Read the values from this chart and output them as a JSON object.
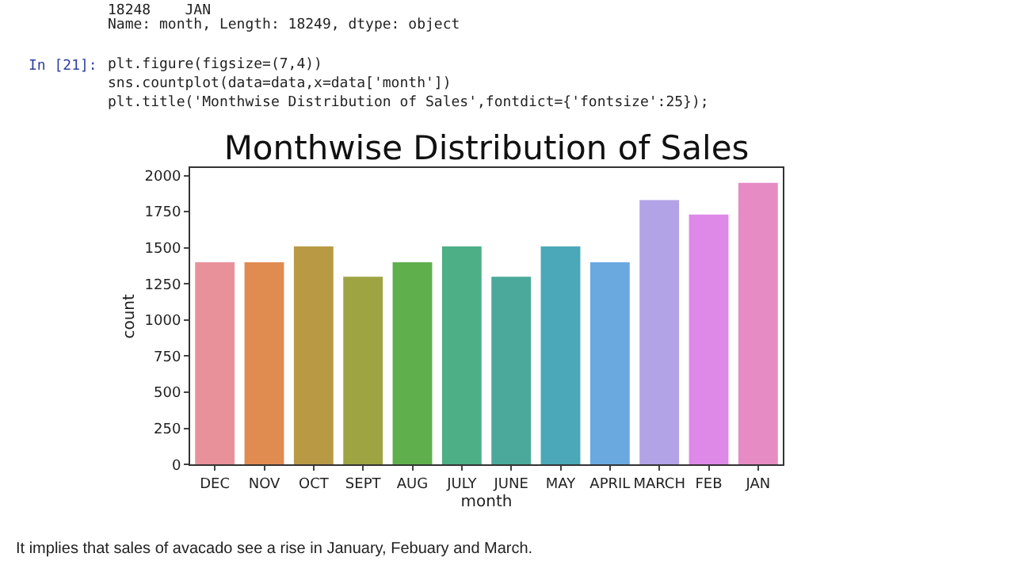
{
  "chart_data": {
    "type": "bar",
    "title": "Monthwise Distribution of Sales",
    "xlabel": "month",
    "ylabel": "count",
    "categories": [
      "DEC",
      "NOV",
      "OCT",
      "SEPT",
      "AUG",
      "JULY",
      "JUNE",
      "MAY",
      "APRIL",
      "MARCH",
      "FEB",
      "JAN"
    ],
    "values": [
      1400,
      1400,
      1510,
      1300,
      1400,
      1510,
      1300,
      1510,
      1400,
      1830,
      1730,
      1950
    ],
    "colors": [
      "#e8919b",
      "#e08b50",
      "#b89a45",
      "#9ea442",
      "#5fb04d",
      "#4daf86",
      "#4aa99a",
      "#4aa8b8",
      "#6aa9e0",
      "#b2a2e6",
      "#de88e8",
      "#e68bc4"
    ],
    "ylim": [
      0,
      2050
    ],
    "yticks": [
      0,
      250,
      500,
      750,
      1000,
      1250,
      1500,
      1750,
      2000
    ],
    "annotations": [
      "18248    JAN",
      "Name: month, Length: 18249, dtype: object",
      "In [21]:",
      "plt.figure(figsize=(7,4))",
      "sns.countplot(data=data,x=data['month'])",
      "plt.title('Monthwise Distribution of Sales',fontdict={'fontsize':25});",
      "It implies that sales of avacado see a rise in January, Febuary and March."
    ]
  }
}
